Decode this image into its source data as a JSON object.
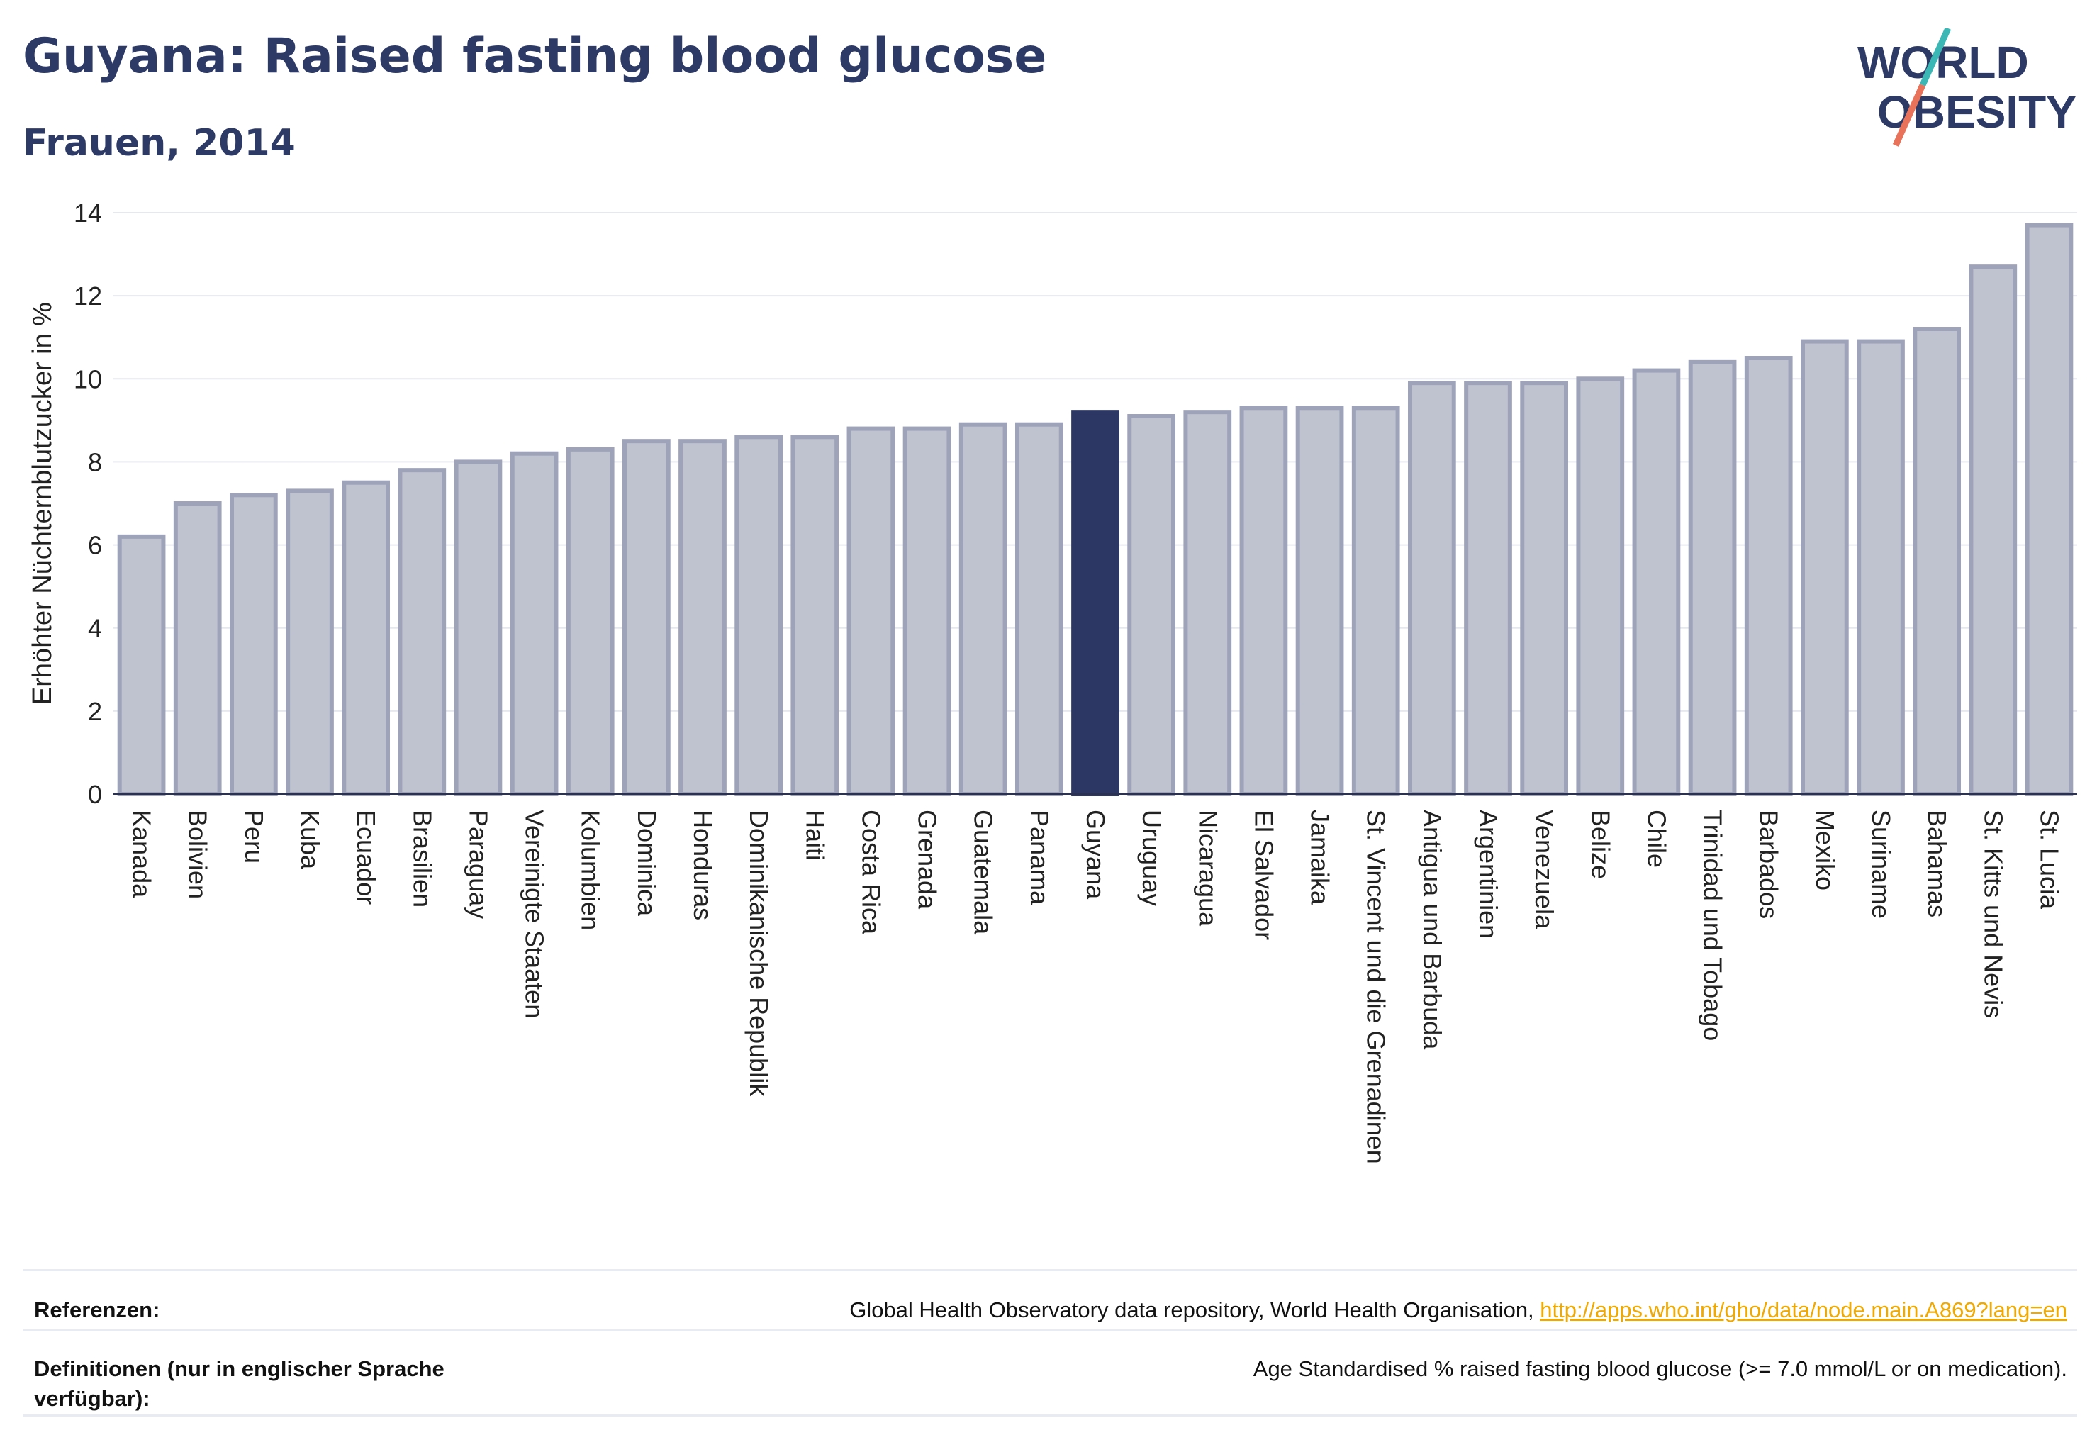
{
  "header": {
    "title": "Guyana: Raised fasting blood glucose",
    "subtitle": "Frauen, 2014"
  },
  "logo": {
    "line1": "WORLD",
    "line2": "OBESITY"
  },
  "chart_data": {
    "type": "bar",
    "ylabel": "Erhöhter Nüchternblutzucker in %",
    "ylim": [
      0,
      14
    ],
    "yticks": [
      0,
      2,
      4,
      6,
      8,
      10,
      12,
      14
    ],
    "grid": true,
    "highlight": "Guyana",
    "colors": {
      "bar": "#bfc2cf",
      "bar_border": "#9ea3ba",
      "highlight": "#2d3763"
    },
    "categories": [
      "Kanada",
      "Bolivien",
      "Peru",
      "Kuba",
      "Ecuador",
      "Brasilien",
      "Paraguay",
      "Vereinigte Staaten",
      "Kolumbien",
      "Dominica",
      "Honduras",
      "Dominikanische Republik",
      "Haiti",
      "Costa Rica",
      "Grenada",
      "Guatemala",
      "Panama",
      "Guyana",
      "Uruguay",
      "Nicaragua",
      "El Salvador",
      "Jamaika",
      "St. Vincent und die Grenadinen",
      "Antigua und Barbuda",
      "Argentinien",
      "Venezuela",
      "Belize",
      "Chile",
      "Trinidad und Tobago",
      "Barbados",
      "Mexiko",
      "Suriname",
      "Bahamas",
      "St. Kitts und Nevis",
      "St. Lucia"
    ],
    "values": [
      6.2,
      7.0,
      7.2,
      7.3,
      7.5,
      7.8,
      8.0,
      8.2,
      8.3,
      8.5,
      8.5,
      8.6,
      8.6,
      8.8,
      8.8,
      8.9,
      8.9,
      9.2,
      9.1,
      9.2,
      9.3,
      9.3,
      9.3,
      9.9,
      9.9,
      9.9,
      10.0,
      10.2,
      10.4,
      10.5,
      10.9,
      10.9,
      11.2,
      12.7,
      13.7
    ]
  },
  "footer": {
    "references_label": "Referenzen:",
    "references_text": "Global Health Observatory data repository, World Health Organisation, ",
    "references_link": "http://apps.who.int/gho/data/node.main.A869?lang=en",
    "definitions_label": "Definitionen (nur in englischer Sprache verfügbar):",
    "definitions_text": "Age Standardised % raised fasting blood glucose (>= 7.0 mmol/L or on medication)."
  }
}
